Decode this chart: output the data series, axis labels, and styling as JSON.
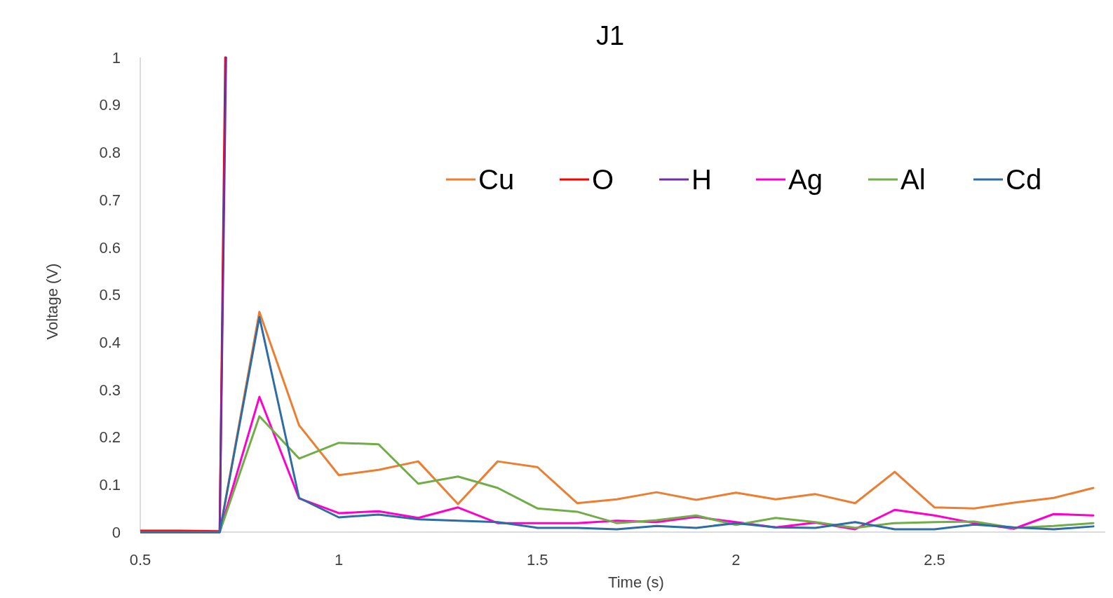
{
  "chart_data": {
    "type": "line",
    "title": "J1",
    "xlabel": "Time (s)",
    "ylabel": "Voltage (V)",
    "x": [
      0.5,
      0.6,
      0.7,
      0.8,
      0.9,
      1.0,
      1.1,
      1.2,
      1.3,
      1.4,
      1.5,
      1.6,
      1.7,
      1.8,
      1.9,
      2.0,
      2.1,
      2.2,
      2.3,
      2.4,
      2.5,
      2.6,
      2.7,
      2.8,
      2.9
    ],
    "xlim": [
      0.5,
      2.93
    ],
    "xticks": [
      0.5,
      1,
      1.5,
      2,
      2.5
    ],
    "ylim": [
      0,
      1
    ],
    "yticks": [
      0,
      0.1,
      0.2,
      0.3,
      0.4,
      0.5,
      0.6,
      0.7,
      0.8,
      0.9,
      1
    ],
    "grid": false,
    "legend": "top right",
    "marker": "none",
    "line_style": "solid",
    "series": [
      {
        "name": "Cu",
        "color": "#ed7d31",
        "values": [
          0,
          0,
          0,
          0.464,
          0.225,
          0.12,
          0.131,
          0.149,
          0.059,
          0.149,
          0.137,
          0.061,
          0.069,
          0.084,
          0.068,
          0.083,
          0.069,
          0.08,
          0.061,
          0.127,
          0.052,
          0.05,
          0.062,
          0.072,
          0.093
        ]
      },
      {
        "name": "O",
        "color": "#ff0000",
        "x": [
          0.5,
          0.6,
          0.7,
          0.714
        ],
        "values": [
          0.003,
          0.003,
          0.002,
          1
        ]
      },
      {
        "name": "H",
        "color": "#7030a0",
        "x": [
          0.5,
          0.6,
          0.7,
          0.716
        ],
        "values": [
          0,
          0,
          0,
          1
        ]
      },
      {
        "name": "Ag",
        "color": "#ff00cc",
        "values": [
          0,
          0,
          0,
          0.285,
          0.071,
          0.04,
          0.044,
          0.03,
          0.052,
          0.019,
          0.019,
          0.019,
          0.024,
          0.021,
          0.032,
          0.021,
          0.01,
          0.02,
          0.006,
          0.047,
          0.035,
          0.019,
          0.007,
          0.038,
          0.035
        ]
      },
      {
        "name": "Al",
        "color": "#70ad47",
        "values": [
          0,
          0,
          0,
          0.244,
          0.155,
          0.188,
          0.185,
          0.102,
          0.117,
          0.093,
          0.05,
          0.043,
          0.019,
          0.025,
          0.035,
          0.015,
          0.03,
          0.021,
          0.009,
          0.019,
          0.021,
          0.022,
          0.009,
          0.013,
          0.019
        ]
      },
      {
        "name": "Cd",
        "color": "#2e6ca4",
        "values": [
          0,
          0,
          0,
          0.453,
          0.072,
          0.031,
          0.037,
          0.027,
          0.024,
          0.021,
          0.009,
          0.009,
          0.006,
          0.013,
          0.009,
          0.019,
          0.01,
          0.009,
          0.021,
          0.006,
          0.006,
          0.016,
          0.01,
          0.006,
          0.012
        ]
      }
    ]
  }
}
